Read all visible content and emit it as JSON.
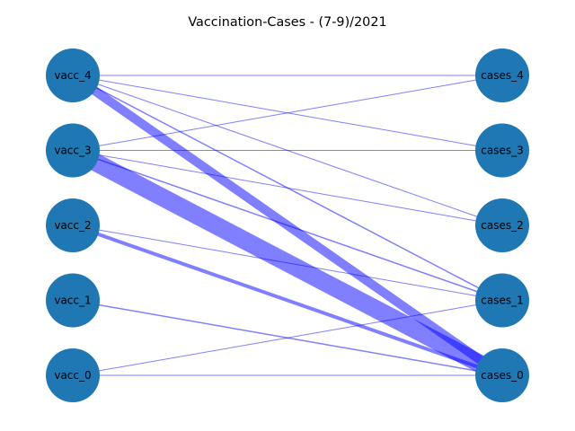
{
  "title": "Vaccination-Cases - (7-9)/2021",
  "colors": {
    "node": "#1f77b4",
    "edge": "#0000ff",
    "background": "#ffffff"
  },
  "left_nodes": [
    {
      "id": "vacc_4",
      "label": "vacc_4"
    },
    {
      "id": "vacc_3",
      "label": "vacc_3"
    },
    {
      "id": "vacc_2",
      "label": "vacc_2"
    },
    {
      "id": "vacc_1",
      "label": "vacc_1"
    },
    {
      "id": "vacc_0",
      "label": "vacc_0"
    }
  ],
  "right_nodes": [
    {
      "id": "cases_4",
      "label": "cases_4"
    },
    {
      "id": "cases_3",
      "label": "cases_3"
    },
    {
      "id": "cases_2",
      "label": "cases_2"
    },
    {
      "id": "cases_1",
      "label": "cases_1"
    },
    {
      "id": "cases_0",
      "label": "cases_0"
    }
  ],
  "edges": [
    {
      "source": "vacc_4",
      "target": "cases_4",
      "weight": 1
    },
    {
      "source": "vacc_4",
      "target": "cases_3",
      "weight": 1
    },
    {
      "source": "vacc_4",
      "target": "cases_2",
      "weight": 1
    },
    {
      "source": "vacc_4",
      "target": "cases_1",
      "weight": 1.5
    },
    {
      "source": "vacc_4",
      "target": "cases_0",
      "weight": 10
    },
    {
      "source": "vacc_3",
      "target": "cases_4",
      "weight": 1
    },
    {
      "source": "vacc_3",
      "target": "cases_3",
      "weight": 1
    },
    {
      "source": "vacc_3",
      "target": "cases_2",
      "weight": 1
    },
    {
      "source": "vacc_3",
      "target": "cases_1",
      "weight": 1.5
    },
    {
      "source": "vacc_3",
      "target": "cases_0",
      "weight": 20
    },
    {
      "source": "vacc_2",
      "target": "cases_1",
      "weight": 1
    },
    {
      "source": "vacc_2",
      "target": "cases_0",
      "weight": 4
    },
    {
      "source": "vacc_1",
      "target": "cases_0",
      "weight": 1.5
    },
    {
      "source": "vacc_0",
      "target": "cases_1",
      "weight": 1
    },
    {
      "source": "vacc_0",
      "target": "cases_0",
      "weight": 1
    }
  ]
}
